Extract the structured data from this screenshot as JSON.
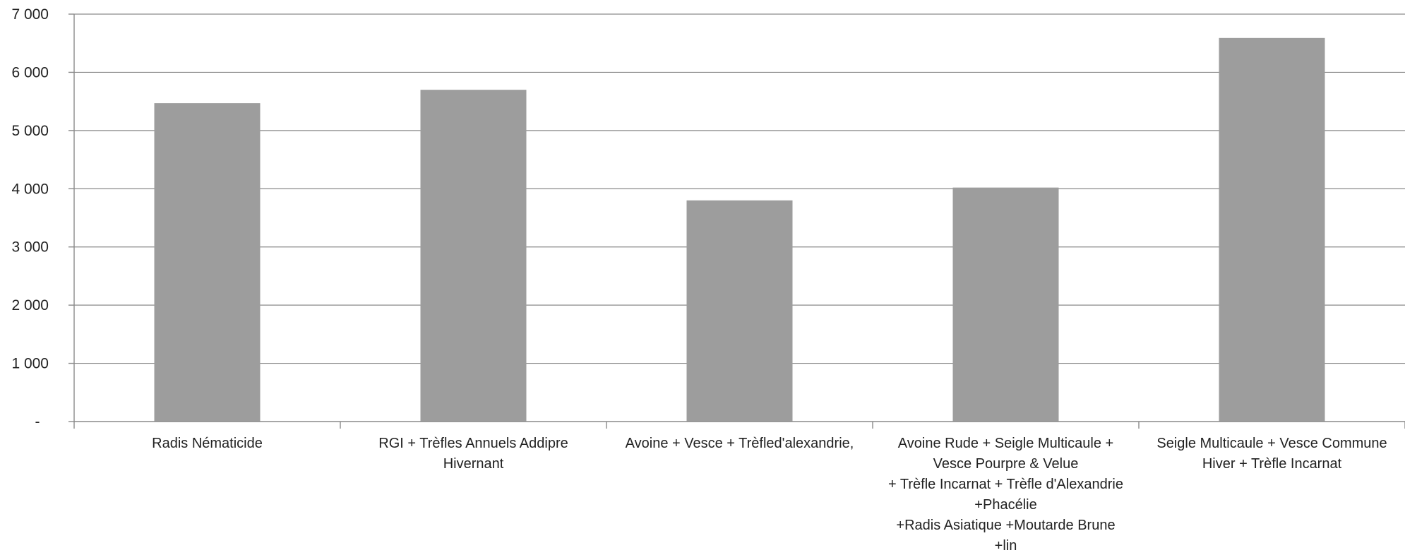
{
  "chart_data": {
    "type": "bar",
    "title": "",
    "xlabel": "",
    "ylabel": "",
    "ylim": [
      0,
      7000
    ],
    "grid": true,
    "legend": "none",
    "bar_color": "#9d9d9d",
    "y_tick_labels": [
      "-",
      "1 000",
      "2 000",
      "3 000",
      "4 000",
      "5 000",
      "6 000",
      "7 000"
    ],
    "categories": [
      [
        "Radis Nématicide"
      ],
      [
        "RGI + Trèfles Annuels Addipre",
        "Hivernant"
      ],
      [
        "Avoine  + Vesce + Trèfled'alexandrie,"
      ],
      [
        "Avoine Rude + Seigle Multicaule +",
        "Vesce Pourpre & Velue",
        "+ Trèfle Incarnat + Trèfle d'Alexandrie",
        "+Phacélie",
        "+Radis Asiatique +Moutarde Brune",
        "+lin"
      ],
      [
        "Seigle Multicaule + Vesce Commune",
        "Hiver + Trèfle Incarnat"
      ]
    ],
    "values": [
      5470,
      5700,
      3800,
      4020,
      6590
    ]
  }
}
